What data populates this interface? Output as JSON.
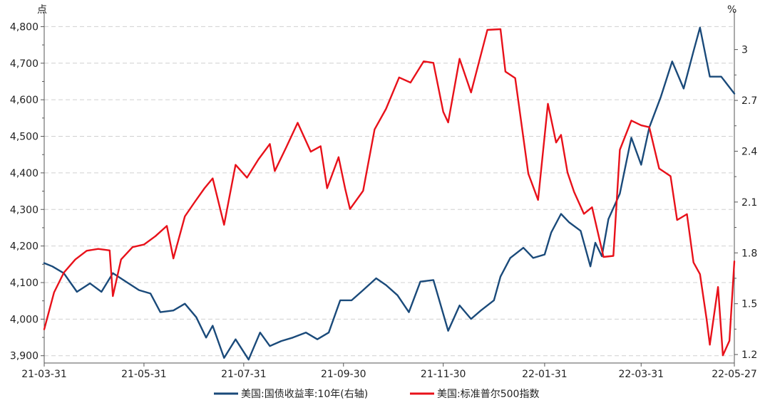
{
  "chart_data": {
    "type": "line",
    "left_unit": "点",
    "right_unit": "%",
    "x_ticks": [
      "21-03-31",
      "21-05-31",
      "21-07-31",
      "21-09-30",
      "21-11-30",
      "22-01-31",
      "22-03-31",
      "22-05-27"
    ],
    "left_ticks": [
      "3,900",
      "4,000",
      "4,100",
      "4,200",
      "4,300",
      "4,400",
      "4,500",
      "4,600",
      "4,700",
      "4,800"
    ],
    "right_ticks": [
      "1.2",
      "1.5",
      "1.8",
      "2.1",
      "2.4",
      "2.7",
      "3"
    ],
    "left_range": [
      3880,
      4830
    ],
    "right_range": [
      1.15,
      3.2
    ],
    "date_range": [
      "2021-03-31",
      "2022-05-27"
    ],
    "grid": true,
    "legend_position": "bottom",
    "colors": {
      "treasury": "#1a4a7a",
      "sp500": "#e8111a",
      "grid": "#d0d0d0",
      "axis": "#555555"
    },
    "series": [
      {
        "name": "美国:国债收益率:10年(右轴)",
        "axis": "right",
        "points": [
          [
            "2021-03-31",
            1.74
          ],
          [
            "2021-04-05",
            1.72
          ],
          [
            "2021-04-12",
            1.68
          ],
          [
            "2021-04-20",
            1.57
          ],
          [
            "2021-04-28",
            1.62
          ],
          [
            "2021-05-05",
            1.57
          ],
          [
            "2021-05-12",
            1.68
          ],
          [
            "2021-05-20",
            1.63
          ],
          [
            "2021-05-28",
            1.58
          ],
          [
            "2021-06-04",
            1.56
          ],
          [
            "2021-06-10",
            1.45
          ],
          [
            "2021-06-18",
            1.46
          ],
          [
            "2021-06-25",
            1.5
          ],
          [
            "2021-07-02",
            1.42
          ],
          [
            "2021-07-08",
            1.3
          ],
          [
            "2021-07-12",
            1.37
          ],
          [
            "2021-07-19",
            1.18
          ],
          [
            "2021-07-26",
            1.29
          ],
          [
            "2021-08-03",
            1.17
          ],
          [
            "2021-08-10",
            1.33
          ],
          [
            "2021-08-16",
            1.25
          ],
          [
            "2021-08-23",
            1.28
          ],
          [
            "2021-08-30",
            1.3
          ],
          [
            "2021-09-07",
            1.33
          ],
          [
            "2021-09-14",
            1.29
          ],
          [
            "2021-09-21",
            1.33
          ],
          [
            "2021-09-28",
            1.52
          ],
          [
            "2021-10-05",
            1.52
          ],
          [
            "2021-10-12",
            1.58
          ],
          [
            "2021-10-20",
            1.65
          ],
          [
            "2021-10-26",
            1.61
          ],
          [
            "2021-11-02",
            1.55
          ],
          [
            "2021-11-09",
            1.45
          ],
          [
            "2021-11-16",
            1.63
          ],
          [
            "2021-11-24",
            1.64
          ],
          [
            "2021-11-30",
            1.44
          ],
          [
            "2021-12-03",
            1.34
          ],
          [
            "2021-12-10",
            1.49
          ],
          [
            "2021-12-17",
            1.41
          ],
          [
            "2021-12-23",
            1.46
          ],
          [
            "2021-12-31",
            1.52
          ],
          [
            "2022-01-04",
            1.66
          ],
          [
            "2022-01-10",
            1.77
          ],
          [
            "2022-01-18",
            1.83
          ],
          [
            "2022-01-24",
            1.77
          ],
          [
            "2022-01-31",
            1.79
          ],
          [
            "2022-02-04",
            1.92
          ],
          [
            "2022-02-10",
            2.03
          ],
          [
            "2022-02-15",
            1.98
          ],
          [
            "2022-02-22",
            1.93
          ],
          [
            "2022-02-28",
            1.72
          ],
          [
            "2022-03-03",
            1.86
          ],
          [
            "2022-03-07",
            1.78
          ],
          [
            "2022-03-11",
            2.0
          ],
          [
            "2022-03-18",
            2.15
          ],
          [
            "2022-03-25",
            2.48
          ],
          [
            "2022-03-31",
            2.32
          ],
          [
            "2022-04-05",
            2.54
          ],
          [
            "2022-04-12",
            2.72
          ],
          [
            "2022-04-19",
            2.93
          ],
          [
            "2022-04-26",
            2.77
          ],
          [
            "2022-05-02",
            2.99
          ],
          [
            "2022-05-06",
            3.13
          ],
          [
            "2022-05-12",
            2.84
          ],
          [
            "2022-05-19",
            2.84
          ],
          [
            "2022-05-27",
            2.74
          ]
        ]
      },
      {
        "name": "美国:标准普尔500指数",
        "axis": "left",
        "points": [
          [
            "2021-03-31",
            3972
          ],
          [
            "2021-04-06",
            4073
          ],
          [
            "2021-04-12",
            4127
          ],
          [
            "2021-04-19",
            4163
          ],
          [
            "2021-04-26",
            4187
          ],
          [
            "2021-05-03",
            4192
          ],
          [
            "2021-05-10",
            4188
          ],
          [
            "2021-05-12",
            4063
          ],
          [
            "2021-05-17",
            4163
          ],
          [
            "2021-05-24",
            4197
          ],
          [
            "2021-05-31",
            4204
          ],
          [
            "2021-06-07",
            4227
          ],
          [
            "2021-06-14",
            4255
          ],
          [
            "2021-06-18",
            4166
          ],
          [
            "2021-06-25",
            4281
          ],
          [
            "2021-07-01",
            4320
          ],
          [
            "2021-07-07",
            4358
          ],
          [
            "2021-07-12",
            4385
          ],
          [
            "2021-07-19",
            4258
          ],
          [
            "2021-07-26",
            4422
          ],
          [
            "2021-08-02",
            4387
          ],
          [
            "2021-08-09",
            4437
          ],
          [
            "2021-08-16",
            4479
          ],
          [
            "2021-08-19",
            4405
          ],
          [
            "2021-08-26",
            4470
          ],
          [
            "2021-09-02",
            4537
          ],
          [
            "2021-09-10",
            4458
          ],
          [
            "2021-09-16",
            4473
          ],
          [
            "2021-09-20",
            4358
          ],
          [
            "2021-09-27",
            4443
          ],
          [
            "2021-10-01",
            4357
          ],
          [
            "2021-10-04",
            4301
          ],
          [
            "2021-10-12",
            4351
          ],
          [
            "2021-10-19",
            4519
          ],
          [
            "2021-10-26",
            4575
          ],
          [
            "2021-11-03",
            4661
          ],
          [
            "2021-11-10",
            4647
          ],
          [
            "2021-11-18",
            4705
          ],
          [
            "2021-11-24",
            4701
          ],
          [
            "2021-11-30",
            4567
          ],
          [
            "2021-12-03",
            4538
          ],
          [
            "2021-12-10",
            4712
          ],
          [
            "2021-12-17",
            4620
          ],
          [
            "2021-12-27",
            4791
          ],
          [
            "2022-01-04",
            4793
          ],
          [
            "2022-01-07",
            4677
          ],
          [
            "2022-01-13",
            4659
          ],
          [
            "2022-01-21",
            4398
          ],
          [
            "2022-01-27",
            4326
          ],
          [
            "2022-02-02",
            4589
          ],
          [
            "2022-02-07",
            4483
          ],
          [
            "2022-02-10",
            4504
          ],
          [
            "2022-02-14",
            4401
          ],
          [
            "2022-02-18",
            4348
          ],
          [
            "2022-02-24",
            4288
          ],
          [
            "2022-03-01",
            4306
          ],
          [
            "2022-03-08",
            4170
          ],
          [
            "2022-03-14",
            4173
          ],
          [
            "2022-03-18",
            4463
          ],
          [
            "2022-03-25",
            4543
          ],
          [
            "2022-03-31",
            4530
          ],
          [
            "2022-04-05",
            4525
          ],
          [
            "2022-04-11",
            4412
          ],
          [
            "2022-04-18",
            4391
          ],
          [
            "2022-04-22",
            4271
          ],
          [
            "2022-04-28",
            4287
          ],
          [
            "2022-05-02",
            4155
          ],
          [
            "2022-05-06",
            4123
          ],
          [
            "2022-05-10",
            4001
          ],
          [
            "2022-05-12",
            3930
          ],
          [
            "2022-05-17",
            4088
          ],
          [
            "2022-05-20",
            3901
          ],
          [
            "2022-05-24",
            3941
          ],
          [
            "2022-05-27",
            4158
          ]
        ]
      }
    ]
  }
}
